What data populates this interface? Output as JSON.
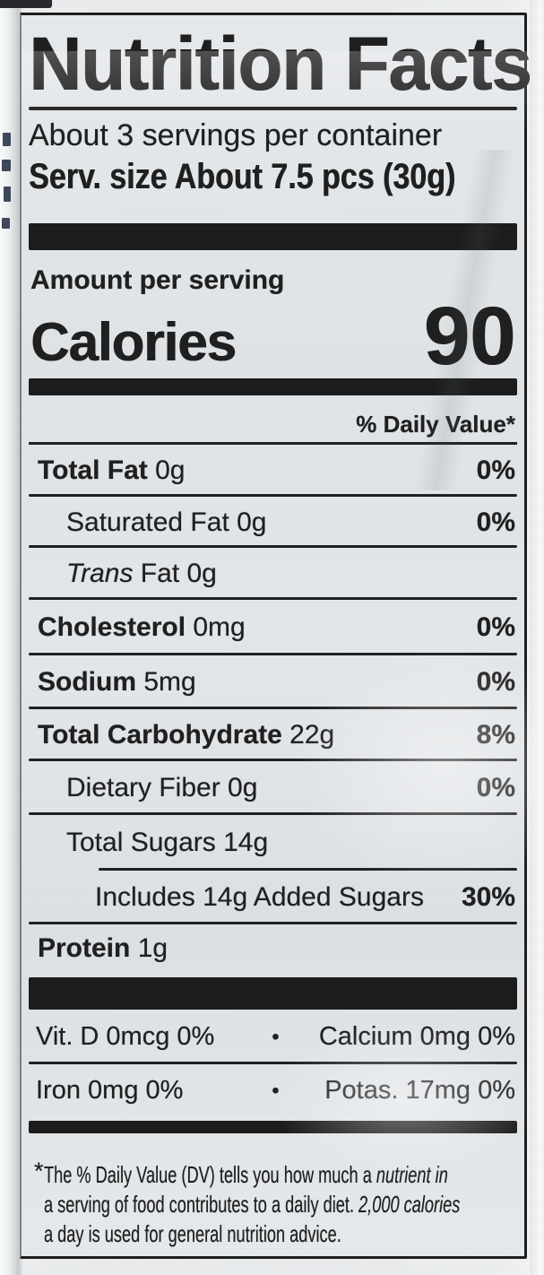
{
  "colors": {
    "ink": "#1b1b1b",
    "label_bg": "#e2e5e8",
    "bag_bg": "#eceeef"
  },
  "label": {
    "title": "Nutrition Facts",
    "servings_per_container": "About 3 servings per container",
    "serving_size_line": "Serv. size About 7.5 pcs (30g)",
    "amount_per_serving": "Amount per serving",
    "calories_label": "Calories",
    "calories_value": "90",
    "daily_value_header": "% Daily Value*",
    "rows": [
      {
        "level": 1,
        "bold": "Total Fat",
        "text": " 0g",
        "dv": "0%",
        "rule": "full"
      },
      {
        "level": 2,
        "text": "Saturated Fat 0g",
        "dv": "0%",
        "rule": "full"
      },
      {
        "level": 2,
        "italic": "Trans",
        "text": " Fat 0g",
        "dv": "",
        "rule": "full"
      },
      {
        "level": 1,
        "bold": "Cholesterol",
        "text": " 0mg",
        "dv": "0%",
        "rule": "full"
      },
      {
        "level": 1,
        "bold": "Sodium",
        "text": " 5mg",
        "dv": "0%",
        "rule": "full"
      },
      {
        "level": 1,
        "bold": "Total Carbohydrate",
        "text": " 22g",
        "dv": "8%",
        "rule": "full"
      },
      {
        "level": 2,
        "text": "Dietary Fiber 0g",
        "dv": "0%",
        "rule": "full"
      },
      {
        "level": 2,
        "text": "Total Sugars 14g",
        "dv": "",
        "rule": "inset"
      },
      {
        "level": 3,
        "text": "Includes 14g Added Sugars",
        "dv": "30%",
        "rule": "full"
      },
      {
        "level": 1,
        "bold": "Protein",
        "text": " 1g",
        "dv": "",
        "rule": "none"
      }
    ],
    "micronutrients": [
      {
        "left": "Vit. D 0mcg 0%",
        "bullet": "•",
        "right": "Calcium 0mg 0%",
        "rule": true
      },
      {
        "left": "Iron 0mg 0%",
        "bullet": "•",
        "right": "Potas. 17mg 0%",
        "rule": false
      }
    ],
    "footnote": {
      "marker": "*",
      "lines": [
        [
          {
            "t": "The % Daily Value (DV) tells you how much a ",
            "i": false
          },
          {
            "t": "nutrient in",
            "i": true
          }
        ],
        [
          {
            "t": "a serving of food contributes to a daily diet. ",
            "i": false
          },
          {
            "t": "2,000 calories",
            "i": true
          }
        ],
        [
          {
            "t": "a day is used for general nutrition advice.",
            "i": false
          }
        ]
      ]
    }
  }
}
